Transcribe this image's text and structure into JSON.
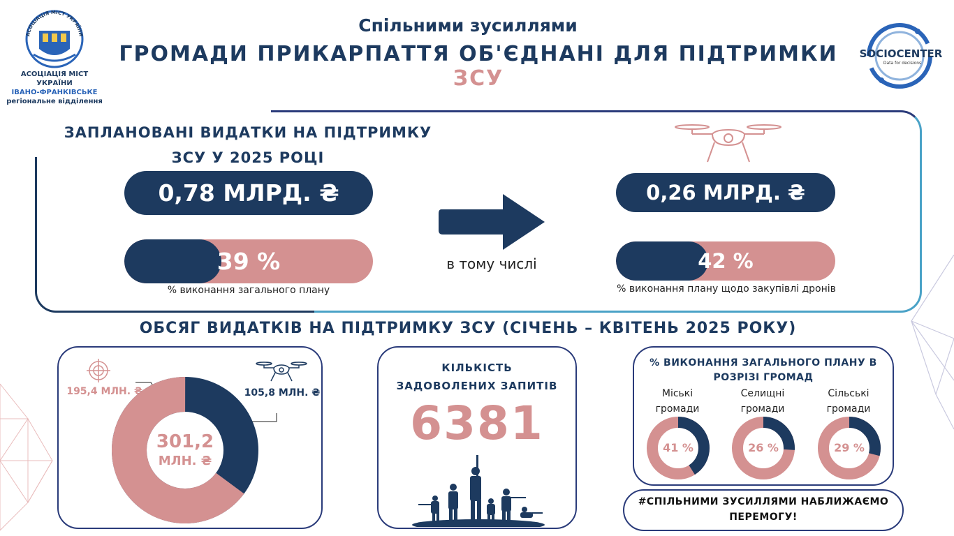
{
  "header": {
    "org_line1": "АСОЦІАЦІЯ МІСТ УКРАЇНИ",
    "org_line2": "ІВАНО-ФРАНКІВСЬКЕ",
    "org_line3": "регіональне відділення",
    "seal_text": "АСОЦІАЦІЯ МІСТ УКРАЇНИ",
    "subtitle": "Спільними зусиллями",
    "title_main": "ГРОМАДИ ПРИКАРПАТТЯ ОБ'ЄДНАНІ ДЛЯ ПІДТРИМКИ ",
    "title_accent": "ЗСУ",
    "partner_logo_name": "SOCIOCENTER",
    "partner_logo_tagline": "Data for decisions"
  },
  "planned": {
    "title_line1": "ЗАПЛАНОВАНІ ВИДАТКИ НА ПІДТРИМКУ",
    "title_line2": "ЗСУ У 2025 РОЦІ",
    "total_amount": "0,78 МЛРД. ₴",
    "total_progress_label": "39 %",
    "total_progress_value": 0.39,
    "total_caption": "% виконання загального плану",
    "including_label": "в тому числі",
    "drone_amount": "0,26 МЛРД. ₴",
    "drone_progress_label": "42 %",
    "drone_progress_value": 0.42,
    "drone_caption": "% виконання плану щодо закупівлі дронів"
  },
  "volume": {
    "title": "ОБСЯГ ВИДАТКІВ НА ПІДТРИМКУ ЗСУ (СІЧЕНЬ – КВІТЕНЬ 2025 РОКУ)",
    "donut_center_value": "301,2",
    "donut_center_unit": "МЛН. ₴",
    "pink_label": "195,4 МЛН. ₴",
    "navy_label": "105,8 МЛН. ₴",
    "pink_value": 195.4,
    "navy_value": 105.8,
    "requests_title_line1": "КІЛЬКІСТЬ",
    "requests_title_line2": "ЗАДОВОЛЕНИХ ЗАПИТІВ",
    "requests_value": "6381",
    "communities_title_line1": "% ВИКОНАННЯ ЗАГАЛЬНОГО ПЛАНУ В",
    "communities_title_line2": "РОЗРІЗІ ГРОМАД",
    "communities": [
      {
        "label_line1": "Міські",
        "label_line2": "громади",
        "pct_label": "41 %",
        "value": 0.41
      },
      {
        "label_line1": "Селищні",
        "label_line2": "громади",
        "pct_label": "26 %",
        "value": 0.26
      },
      {
        "label_line1": "Сільські",
        "label_line2": "громади",
        "pct_label": "29 %",
        "value": 0.29
      }
    ],
    "slogan_line1": "#СПІЛЬНИМИ ЗУСИЛЛЯМИ НАБЛИЖАЄМО",
    "slogan_line2": "ПЕРЕМОГУ!"
  },
  "colors": {
    "navy": "#1d3a5f",
    "pink": "#d49191",
    "accent_blue": "#2a64b8",
    "border_blue": "#4aa2c7"
  }
}
